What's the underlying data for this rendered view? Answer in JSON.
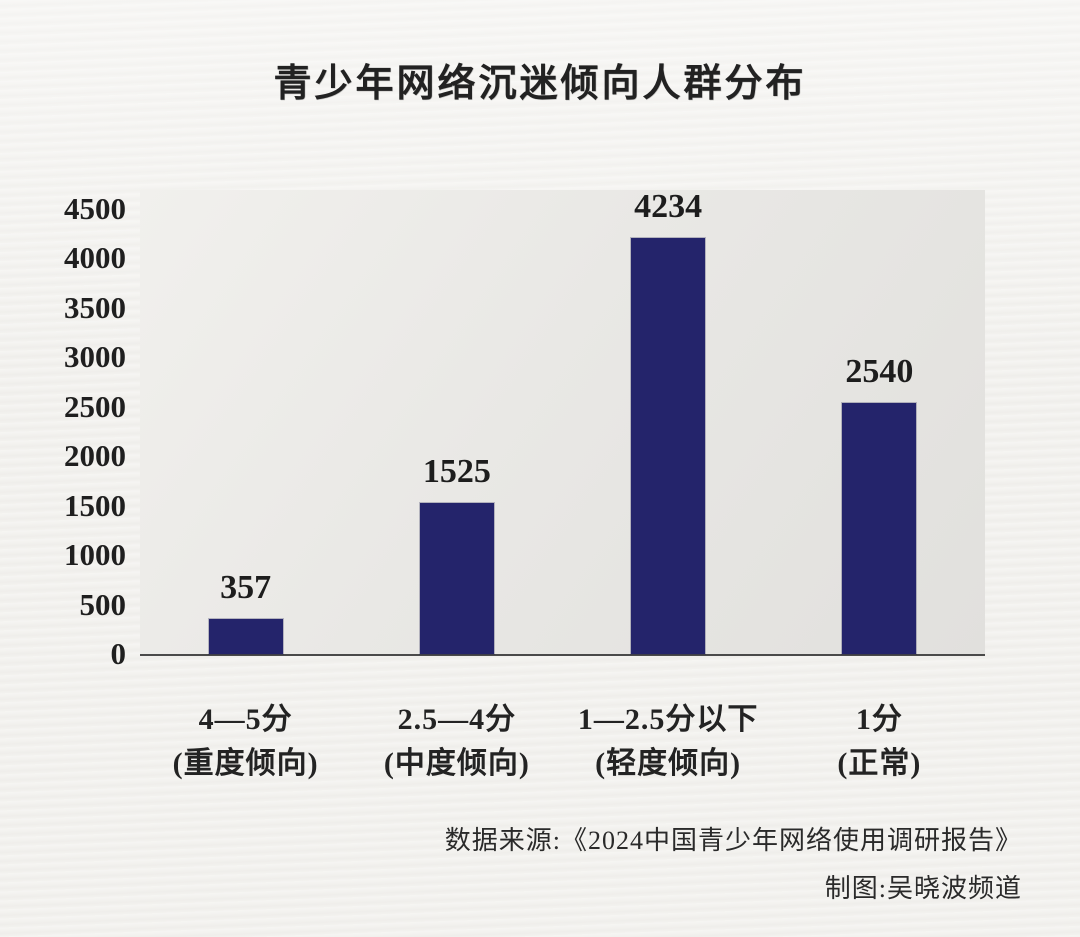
{
  "page": {
    "title": "青少年网络沉迷倾向人群分布"
  },
  "chart_data": {
    "type": "bar",
    "title": "青少年网络沉迷倾向人群分布",
    "categories": [
      "4—5分 (重度倾向)",
      "2.5—4分 (中度倾向)",
      "1—2.5分以下 (轻度倾向)",
      "1分 (正常)"
    ],
    "category_lines": [
      [
        "4—5分",
        "(重度倾向)"
      ],
      [
        "2.5—4分",
        "(中度倾向)"
      ],
      [
        "1—2.5分以下",
        "(轻度倾向)"
      ],
      [
        "1分",
        "(正常)"
      ]
    ],
    "values": [
      357,
      1525,
      4234,
      2540
    ],
    "value_labels": [
      "357",
      "1525",
      "4234",
      "2540"
    ],
    "xlabel": "",
    "ylabel": "",
    "ylim": [
      0,
      4500
    ],
    "yticks": [
      0,
      500,
      1000,
      1500,
      2000,
      2500,
      3000,
      3500,
      4000,
      4500
    ],
    "grid": false,
    "legend": "none",
    "bar_color": "#24246b",
    "plot_bg_color": "#e7e6e3",
    "page_bg_color": "#f3f2ef"
  },
  "footer": {
    "source": "数据来源:《2024中国青少年网络使用调研报告》",
    "credit": "制图:吴晓波频道"
  }
}
